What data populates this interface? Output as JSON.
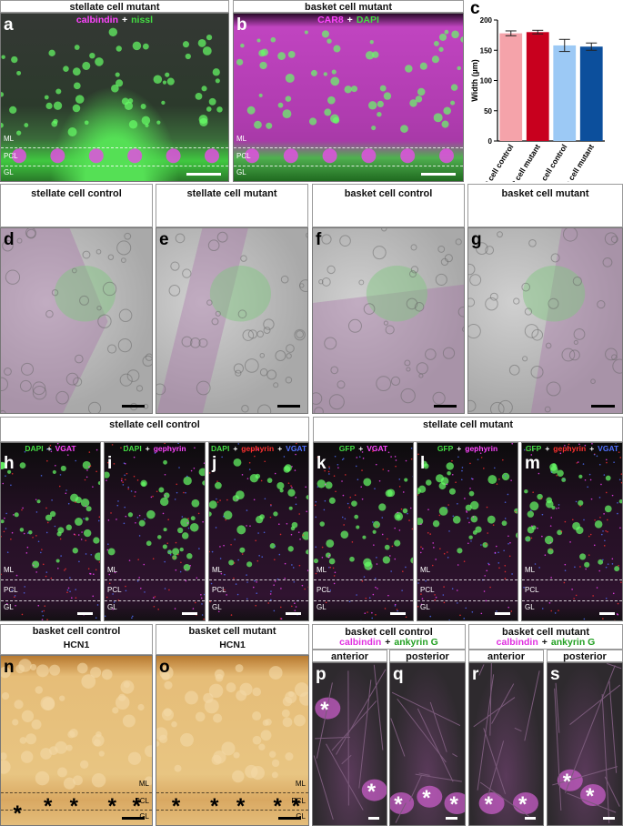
{
  "panels": [
    {
      "label": "a",
      "title": "stellate cell mutant",
      "stain": [
        {
          "text": "calbindin",
          "color": "#ff44ff"
        },
        {
          "text": "+",
          "color": "#ffffff"
        },
        {
          "text": "nissl",
          "color": "#44dd44"
        }
      ]
    },
    {
      "label": "b",
      "title": "basket cell mutant",
      "stain": [
        {
          "text": "CAR8",
          "color": "#ff44ff"
        },
        {
          "text": "+",
          "color": "#ffffff"
        },
        {
          "text": "DAPI",
          "color": "#44dd44"
        }
      ]
    },
    {
      "label": "d",
      "title": "stellate cell control"
    },
    {
      "label": "e",
      "title": "stellate cell mutant"
    },
    {
      "label": "f",
      "title": "basket cell control"
    },
    {
      "label": "g",
      "title": "basket cell mutant"
    },
    {
      "label": "h",
      "stain": [
        {
          "text": "DAPI",
          "color": "#44dd44"
        },
        {
          "text": "+",
          "color": "#ffffff"
        },
        {
          "text": "VGAT",
          "color": "#ff44ff"
        }
      ]
    },
    {
      "label": "i",
      "stain": [
        {
          "text": "DAPI",
          "color": "#44dd44"
        },
        {
          "text": "+",
          "color": "#ffffff"
        },
        {
          "text": "gephyrin",
          "color": "#ff44ff"
        }
      ]
    },
    {
      "label": "j",
      "stain": [
        {
          "text": "DAPI",
          "color": "#44dd44"
        },
        {
          "text": "+",
          "color": "#ffffff"
        },
        {
          "text": "gephyrin",
          "color": "#ff3030"
        },
        {
          "text": "+",
          "color": "#ffffff"
        },
        {
          "text": "VGAT",
          "color": "#5070ff"
        }
      ]
    },
    {
      "label": "k",
      "stain": [
        {
          "text": "GFP",
          "color": "#44dd44"
        },
        {
          "text": "+",
          "color": "#ffffff"
        },
        {
          "text": "VGAT",
          "color": "#ff44ff"
        }
      ]
    },
    {
      "label": "l",
      "stain": [
        {
          "text": "GFP",
          "color": "#44dd44"
        },
        {
          "text": "+",
          "color": "#ffffff"
        },
        {
          "text": "gephyrin",
          "color": "#ff44ff"
        }
      ]
    },
    {
      "label": "m",
      "stain": [
        {
          "text": "GFP",
          "color": "#44dd44"
        },
        {
          "text": "+",
          "color": "#ffffff"
        },
        {
          "text": "gephyrin",
          "color": "#ff3030"
        },
        {
          "text": "+",
          "color": "#ffffff"
        },
        {
          "text": "VGAT",
          "color": "#5070ff"
        }
      ]
    },
    {
      "label": "n",
      "title": "basket cell control",
      "stain": [
        {
          "text": "HCN1",
          "color": "#111111"
        }
      ]
    },
    {
      "label": "o",
      "title": "basket cell mutant",
      "stain": [
        {
          "text": "HCN1",
          "color": "#111111"
        }
      ]
    },
    {
      "label": "p",
      "title": "anterior"
    },
    {
      "label": "q",
      "title": "posterior"
    },
    {
      "label": "r",
      "title": "anterior"
    },
    {
      "label": "s",
      "title": "posterior"
    }
  ],
  "groups": [
    {
      "title": "stellate cell control"
    },
    {
      "title": "stellate cell mutant"
    },
    {
      "title": "basket cell control",
      "stain": [
        {
          "text": "calbindin",
          "color": "#e030e0"
        },
        {
          "text": "+",
          "color": "#111111"
        },
        {
          "text": "ankyrin G",
          "color": "#22a022"
        }
      ]
    },
    {
      "title": "basket cell mutant",
      "stain": [
        {
          "text": "calbindin",
          "color": "#e030e0"
        },
        {
          "text": "+",
          "color": "#111111"
        },
        {
          "text": "ankyrin G",
          "color": "#22a022"
        }
      ]
    }
  ],
  "layers": [
    "ML",
    "PCL",
    "GL"
  ],
  "marker": "*",
  "chart_data": {
    "type": "bar",
    "panel": "c",
    "ylabel": "Width (µm)",
    "categories": [
      "basket cell control",
      "basket cell mutant",
      "stellate cell control",
      "stellate cell mutant"
    ],
    "values": [
      178,
      180,
      158,
      156
    ],
    "errors": [
      4,
      3,
      10,
      6
    ],
    "colors": [
      "#f5a3aa",
      "#c8001e",
      "#9cc9f5",
      "#0c4f9c"
    ],
    "ylim": [
      0,
      200
    ],
    "yticks": [
      0,
      50,
      100,
      150,
      200
    ]
  }
}
